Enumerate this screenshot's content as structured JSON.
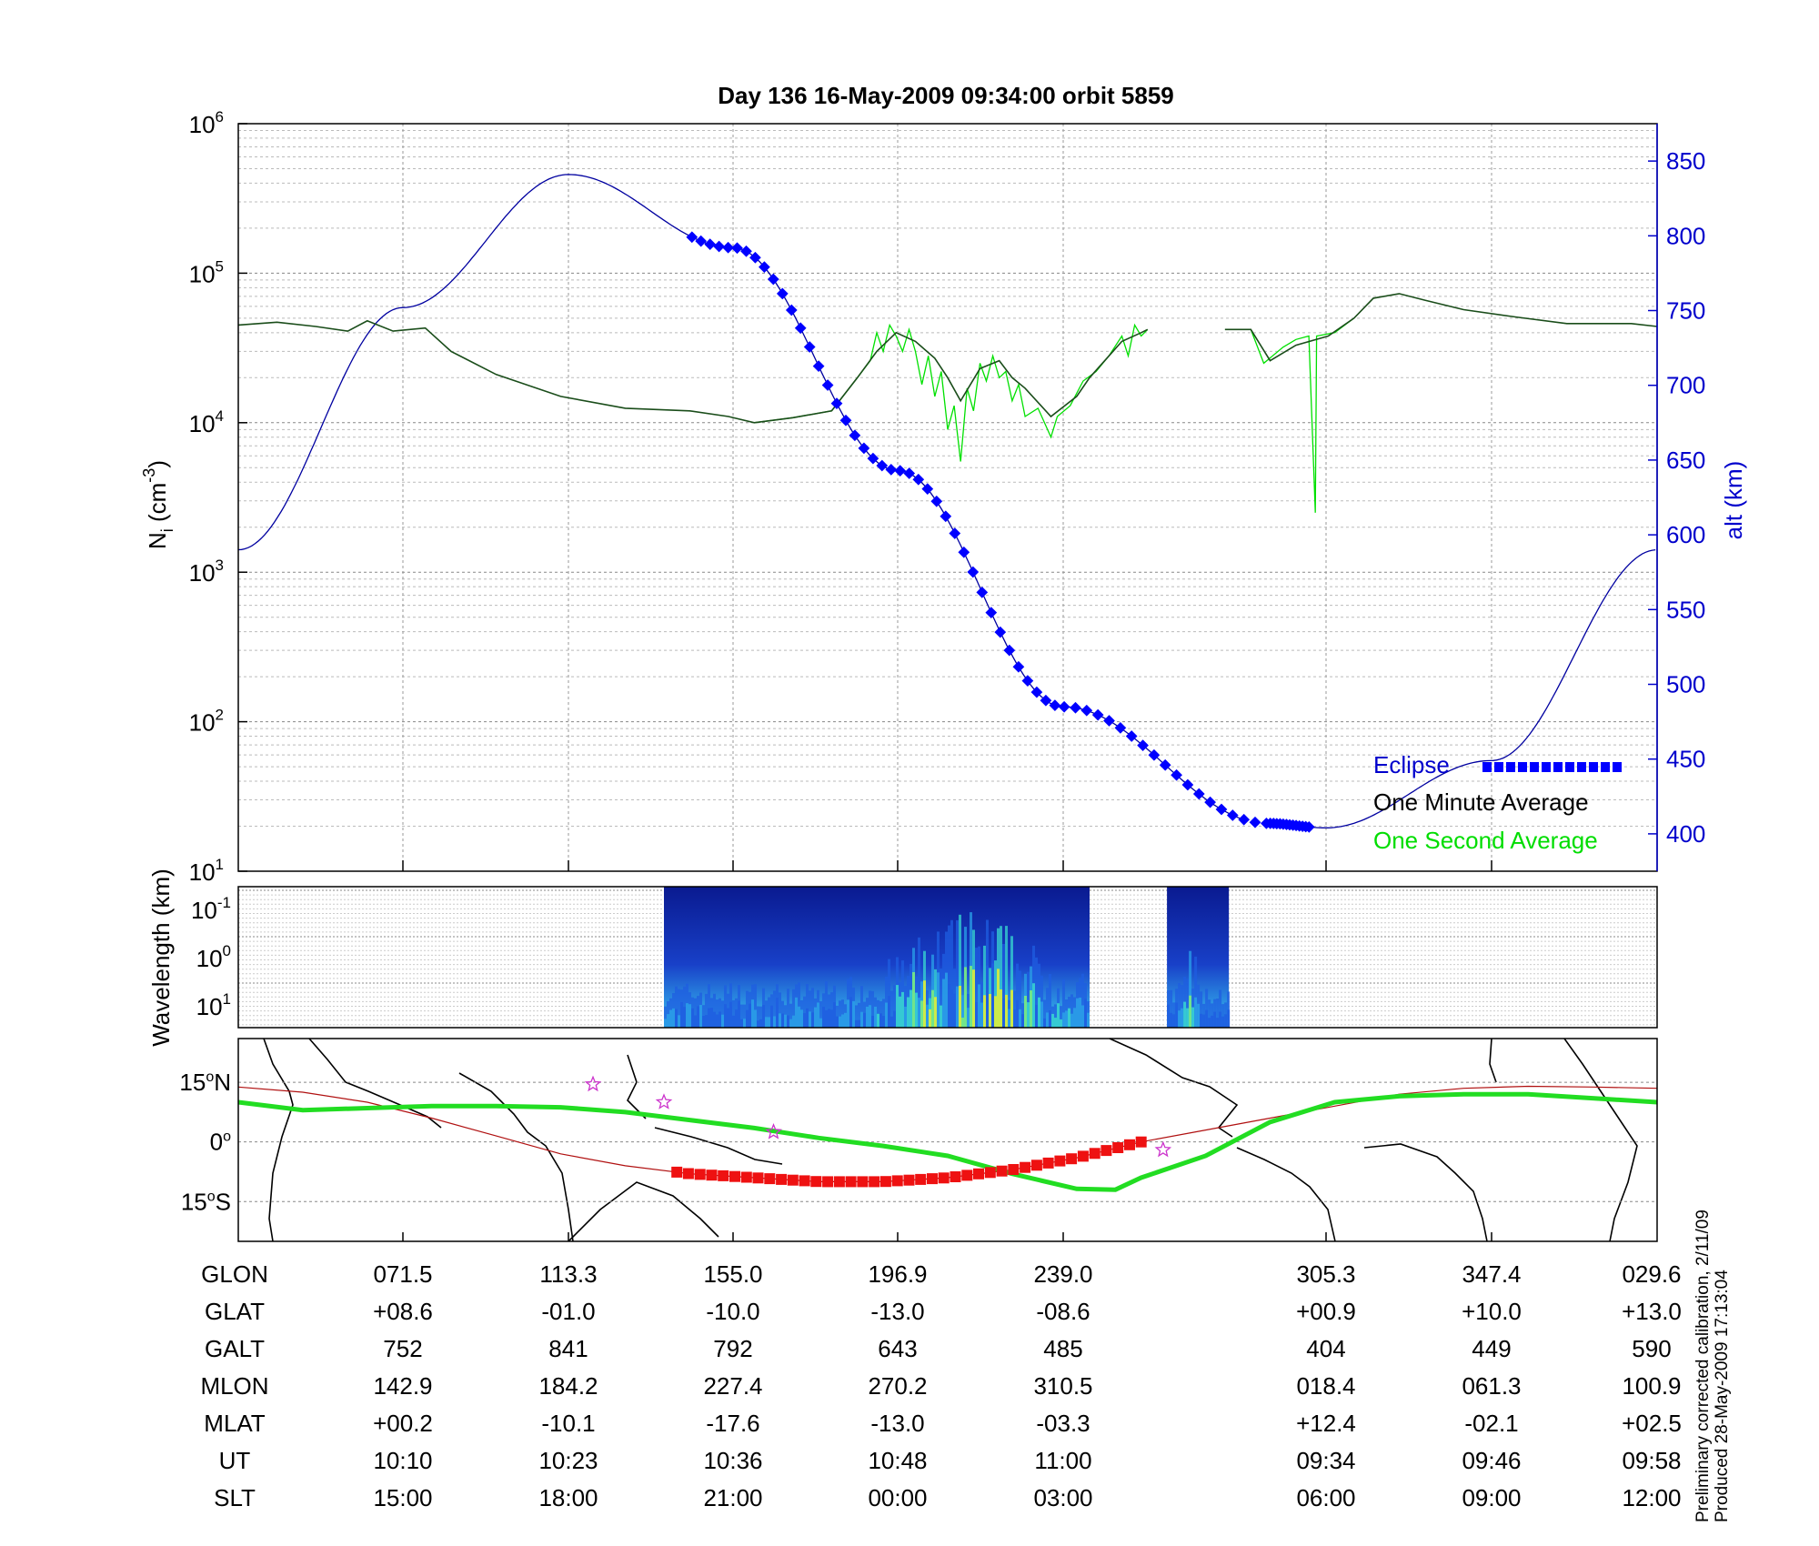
{
  "chart_data": [
    {
      "type": "line",
      "title": "Day 136  16-May-2009 09:34:00   orbit 5859",
      "ylabel_prefix": "N",
      "ylabel_sub": "i",
      "ylabel_suffix": " (cm",
      "ylabel_sup": "-3",
      "ylabel_close": ")",
      "yscale": "log",
      "ylim": [
        10,
        1000000
      ],
      "left_ticks": [
        {
          "base": "10",
          "exp": "1",
          "value": 10
        },
        {
          "base": "10",
          "exp": "2",
          "value": 100
        },
        {
          "base": "10",
          "exp": "3",
          "value": 1000
        },
        {
          "base": "10",
          "exp": "4",
          "value": 10000
        },
        {
          "base": "10",
          "exp": "5",
          "value": 100000
        },
        {
          "base": "10",
          "exp": "6",
          "value": 1000000
        }
      ],
      "y2label": "alt (km)",
      "y2lim": [
        375,
        875
      ],
      "y2_ticks": [
        "400",
        "450",
        "500",
        "550",
        "600",
        "650",
        "700",
        "750",
        "800",
        "850"
      ],
      "grid": true,
      "legend_position": "bottom-right",
      "legend": {
        "eclipse": "Eclipse",
        "minute": "One Minute Average",
        "second": "One Second Average"
      },
      "series": [
        {
          "name": "One Minute Average",
          "key": "minute",
          "segments": [
            [
              [
                0,
                45000
              ],
              [
                0.3,
                47000
              ],
              [
                0.6,
                44000
              ],
              [
                0.85,
                41000
              ],
              [
                1.0,
                48000
              ],
              [
                1.2,
                41000
              ],
              [
                1.45,
                43000
              ],
              [
                1.65,
                30000
              ],
              [
                2.0,
                21000
              ],
              [
                2.5,
                15000
              ],
              [
                3.0,
                12500
              ],
              [
                3.5,
                12000
              ],
              [
                3.8,
                11000
              ],
              [
                4.0,
                10000
              ],
              [
                4.3,
                10800
              ],
              [
                4.6,
                12000
              ],
              [
                4.8,
                20000
              ],
              [
                4.95,
                30000
              ],
              [
                5.1,
                40000
              ],
              [
                5.25,
                35000
              ],
              [
                5.4,
                27000
              ],
              [
                5.5,
                20000
              ],
              [
                5.6,
                14000
              ],
              [
                5.75,
                23000
              ],
              [
                5.9,
                26000
              ],
              [
                6.0,
                20000
              ],
              [
                6.1,
                17000
              ],
              [
                6.3,
                11000
              ],
              [
                6.5,
                15000
              ],
              [
                6.6,
                20000
              ],
              [
                6.85,
                35000
              ],
              [
                7.0,
                40000
              ],
              [
                7.05,
                42000
              ]
            ],
            [
              [
                7.65,
                42000
              ],
              [
                7.85,
                42000
              ],
              [
                8.0,
                26000
              ],
              [
                8.2,
                33000
              ],
              [
                8.45,
                38000
              ],
              [
                8.65,
                50000
              ],
              [
                8.8,
                68000
              ],
              [
                9.0,
                73000
              ],
              [
                9.2,
                66000
              ],
              [
                9.5,
                57000
              ],
              [
                9.9,
                51000
              ],
              [
                10.3,
                46000
              ],
              [
                10.8,
                46000
              ],
              [
                11.0,
                44000
              ]
            ]
          ]
        },
        {
          "name": "One Second Average",
          "key": "second",
          "segments": [
            [
              [
                4.0,
                10000
              ],
              [
                4.3,
                10800
              ],
              [
                4.6,
                12000
              ],
              [
                4.8,
                20000
              ],
              [
                4.9,
                26000
              ],
              [
                4.95,
                40000
              ],
              [
                5.0,
                30000
              ],
              [
                5.05,
                45000
              ],
              [
                5.1,
                38000
              ],
              [
                5.15,
                30000
              ],
              [
                5.2,
                42000
              ],
              [
                5.25,
                30000
              ],
              [
                5.3,
                18000
              ],
              [
                5.35,
                28000
              ],
              [
                5.4,
                15000
              ],
              [
                5.45,
                22000
              ],
              [
                5.5,
                9000
              ],
              [
                5.55,
                13000
              ],
              [
                5.6,
                5500
              ],
              [
                5.65,
                17000
              ],
              [
                5.7,
                12000
              ],
              [
                5.75,
                25000
              ],
              [
                5.8,
                19000
              ],
              [
                5.85,
                28000
              ],
              [
                5.9,
                20000
              ],
              [
                5.95,
                22000
              ],
              [
                6.0,
                14000
              ],
              [
                6.05,
                18000
              ],
              [
                6.1,
                11000
              ],
              [
                6.2,
                12500
              ],
              [
                6.3,
                8000
              ],
              [
                6.35,
                11000
              ],
              [
                6.45,
                13000
              ],
              [
                6.55,
                19000
              ],
              [
                6.65,
                22000
              ],
              [
                6.75,
                28000
              ],
              [
                6.85,
                38000
              ],
              [
                6.9,
                28000
              ],
              [
                6.95,
                45000
              ],
              [
                7.0,
                38000
              ],
              [
                7.05,
                42000
              ]
            ],
            [
              [
                7.65,
                42000
              ],
              [
                7.85,
                42000
              ],
              [
                7.95,
                25000
              ],
              [
                8.1,
                32000
              ],
              [
                8.2,
                36000
              ],
              [
                8.3,
                38000
              ],
              [
                8.35,
                2500
              ],
              [
                8.36,
                38000
              ],
              [
                8.5,
                40000
              ],
              [
                8.65,
                50000
              ]
            ]
          ]
        }
      ],
      "altitude": [
        [
          0,
          590
        ],
        [
          1,
          752
        ],
        [
          2,
          841
        ],
        [
          3,
          792
        ],
        [
          4,
          643
        ],
        [
          5,
          485
        ],
        [
          6,
          407
        ],
        [
          7,
          404
        ],
        [
          8,
          449
        ],
        [
          9,
          590
        ]
      ],
      "eclipse": {
        "from": 3.0,
        "to": 7.0
      }
    },
    {
      "type": "heatmap",
      "ylabel": "Wavelength (km)",
      "ticks": [
        {
          "base": "10",
          "exp": "-1"
        },
        {
          "base": "10",
          "exp": "0"
        },
        {
          "base": "10",
          "exp": "1"
        }
      ],
      "blocks": [
        [
          2.6,
          5.9
        ],
        [
          6.5,
          6.98
        ]
      ]
    },
    {
      "type": "scatter",
      "lat_ticks": [
        {
          "deg": "15",
          "hem": "N",
          "value": 15
        },
        {
          "deg": "0",
          "hem": "",
          "value": 0
        },
        {
          "deg": "15",
          "hem": "S",
          "value": -15
        }
      ],
      "ylim": [
        -25,
        26
      ],
      "footpoint_track": [
        [
          0,
          10
        ],
        [
          0.5,
          8
        ],
        [
          1,
          8.5
        ],
        [
          1.5,
          9
        ],
        [
          2,
          9
        ],
        [
          2.5,
          8.7
        ],
        [
          3,
          7.5
        ],
        [
          3.5,
          5.5
        ],
        [
          4,
          3.5
        ],
        [
          4.5,
          1
        ],
        [
          5,
          -1
        ],
        [
          5.5,
          -3.5
        ],
        [
          6,
          -8
        ],
        [
          6.5,
          -11.8
        ],
        [
          6.8,
          -12
        ],
        [
          7,
          -9
        ],
        [
          7.5,
          -3.5
        ],
        [
          8,
          5
        ],
        [
          8.5,
          10
        ],
        [
          9,
          11.5
        ],
        [
          9.5,
          12
        ],
        [
          10,
          12
        ],
        [
          10.5,
          11
        ],
        [
          11,
          10
        ]
      ],
      "orbit_track": [
        [
          0,
          13.8
        ],
        [
          0.5,
          12.5
        ],
        [
          1,
          10
        ],
        [
          1.5,
          6
        ],
        [
          2,
          1.5
        ],
        [
          2.5,
          -3
        ],
        [
          3,
          -6
        ],
        [
          3.5,
          -8
        ],
        [
          4,
          -9
        ],
        [
          4.5,
          -10
        ],
        [
          5,
          -10
        ],
        [
          5.5,
          -9
        ],
        [
          6,
          -7
        ],
        [
          6.5,
          -4
        ],
        [
          7,
          0
        ],
        [
          7.5,
          3
        ],
        [
          8,
          6
        ],
        [
          8.5,
          9
        ],
        [
          9,
          12
        ],
        [
          9.5,
          13.5
        ],
        [
          10,
          14
        ],
        [
          10.5,
          13.8
        ],
        [
          11,
          13.5
        ]
      ],
      "stars": [
        [
          2.75,
          14.5
        ],
        [
          3.3,
          10
        ],
        [
          4.15,
          2.5
        ],
        [
          7.17,
          -2
        ]
      ]
    }
  ],
  "table": {
    "row_labels": [
      "GLON",
      "GLAT",
      "GALT",
      "MLON",
      "MLAT",
      "UT",
      "SLT"
    ],
    "columns": [
      [
        "071.5",
        "+08.6",
        "752",
        "142.9",
        "+00.2",
        "10:10",
        "15:00"
      ],
      [
        "113.3",
        "-01.0",
        "841",
        "184.2",
        "-10.1",
        "10:23",
        "18:00"
      ],
      [
        "155.0",
        "-10.0",
        "792",
        "227.4",
        "-17.6",
        "10:36",
        "21:00"
      ],
      [
        "196.9",
        "-13.0",
        "643",
        "270.2",
        "-13.0",
        "10:48",
        "00:00"
      ],
      [
        "239.0",
        "-08.6",
        "485",
        "310.5",
        "-03.3",
        "11:00",
        "03:00"
      ],
      [
        "305.3",
        "+00.9",
        "404",
        "018.4",
        "+12.4",
        "09:34",
        "06:00"
      ],
      [
        "347.4",
        "+10.0",
        "449",
        "061.3",
        "-02.1",
        "09:46",
        "09:00"
      ],
      [
        "029.6",
        "+13.0",
        "590",
        "100.9",
        "+02.5",
        "09:58",
        "12:00"
      ]
    ]
  },
  "footer": {
    "line1": "Preliminary corrected calibration, 2/11/09",
    "line2": "Produced 28-May-2009 17:13:04"
  },
  "colors": {
    "altitude": "#0000a0",
    "minute": "#1a4d1a",
    "second": "#00e000",
    "eclipse": "#0000ff",
    "footpoint": "#22dd22",
    "orbit": "#b01010",
    "eclipse_track": "#ee1111",
    "star": "#cc33cc",
    "axis_blue": "#0000cc"
  }
}
